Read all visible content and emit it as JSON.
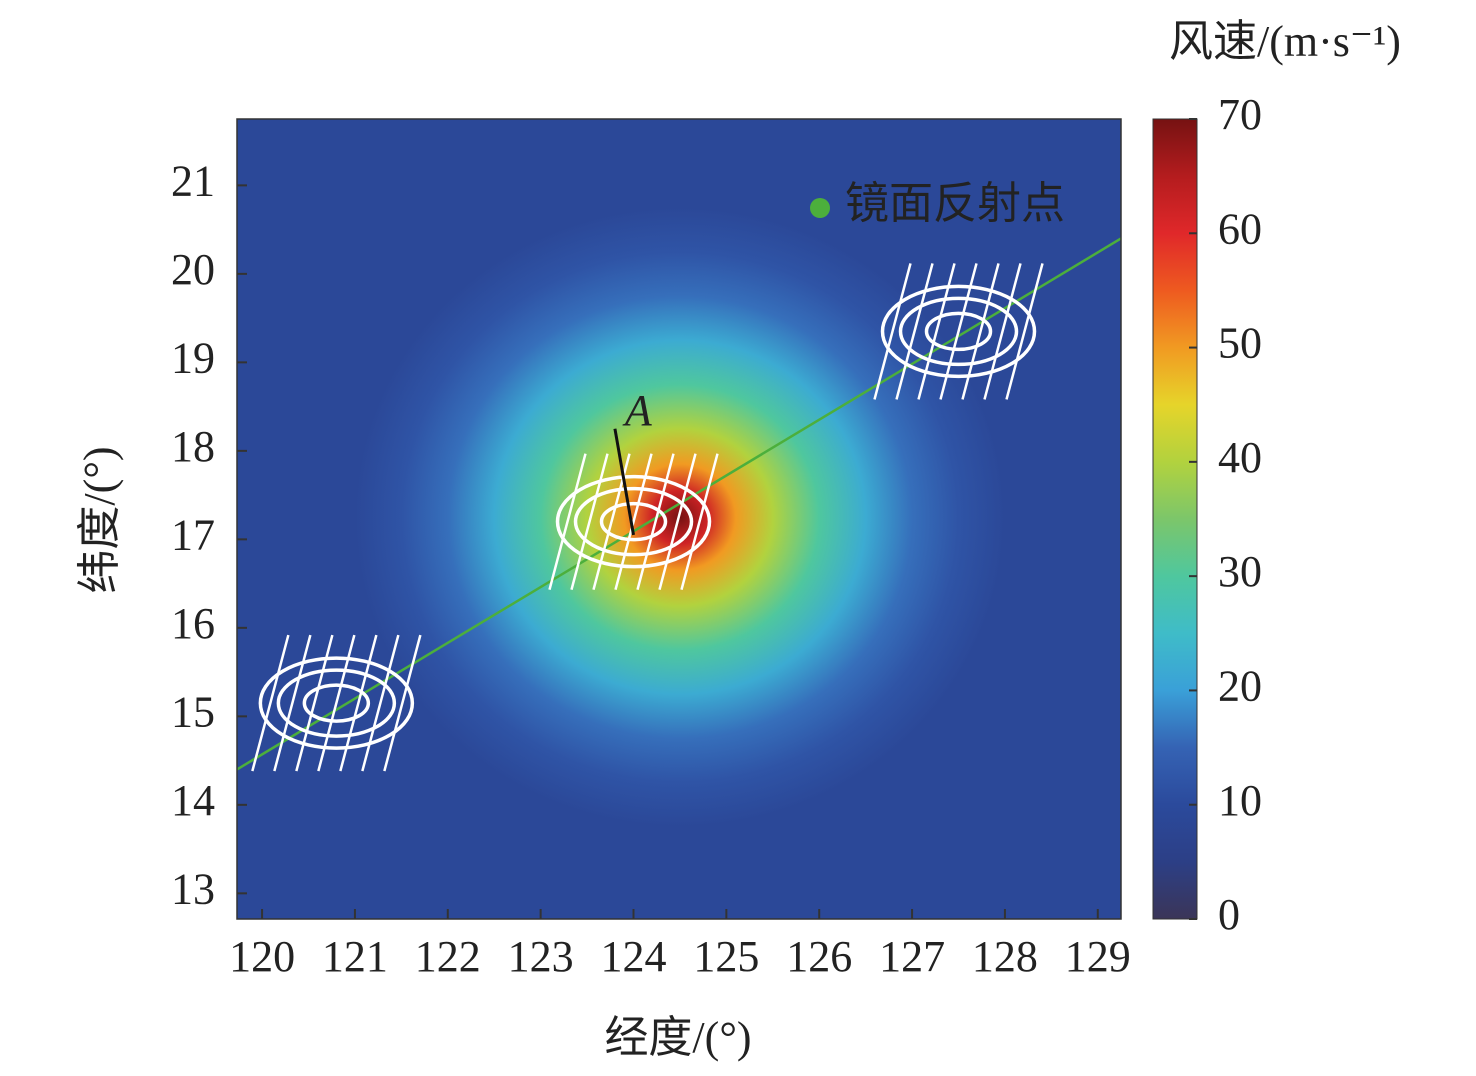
{
  "chart_data": {
    "type": "heatmap",
    "xlabel": "经度/(°)",
    "ylabel": "纬度/(°)",
    "colorbar_label": "风速/(m·s⁻¹)",
    "xlim": [
      119.73,
      129.25
    ],
    "ylim": [
      12.71,
      21.75
    ],
    "xticks": [
      120,
      121,
      122,
      123,
      124,
      125,
      126,
      127,
      128,
      129
    ],
    "yticks": [
      13,
      14,
      15,
      16,
      17,
      18,
      19,
      20,
      21
    ],
    "clim": [
      0,
      70
    ],
    "cticks": [
      0,
      10,
      20,
      30,
      40,
      50,
      60,
      70
    ],
    "colormap": {
      "stops": [
        0,
        5,
        10,
        15,
        20,
        25,
        30,
        35,
        40,
        45,
        50,
        55,
        60,
        65,
        70
      ],
      "colors": [
        "#3b3558",
        "#2c3f86",
        "#2b4a9c",
        "#3563b4",
        "#3aa0d8",
        "#3fbcc8",
        "#4fc79e",
        "#7cc66a",
        "#b2d23e",
        "#e6d42a",
        "#f19a22",
        "#ee5a20",
        "#e0282a",
        "#b41c1e",
        "#761212"
      ]
    },
    "storm": {
      "center_x": 124.5,
      "center_y": 17.25,
      "radius": [
        0,
        0.3,
        0.6,
        1.0,
        1.5,
        2.0,
        2.5,
        3.0,
        3.5
      ],
      "values": [
        70,
        62,
        50,
        40,
        30,
        22,
        16,
        12,
        9
      ]
    },
    "series": [
      {
        "name": "镜面反射点",
        "color": "#4caf3c",
        "x": [
          119.73,
          129.25
        ],
        "y": [
          14.4,
          20.4
        ]
      }
    ],
    "footprints": {
      "x": [
        120.8,
        124.0,
        127.5
      ],
      "y": [
        15.15,
        17.2,
        19.35
      ]
    },
    "annotation": {
      "text": "A",
      "x": [
        123.8,
        124.0
      ],
      "y": [
        18.25,
        17.05
      ]
    },
    "legend_position": "upper right"
  }
}
